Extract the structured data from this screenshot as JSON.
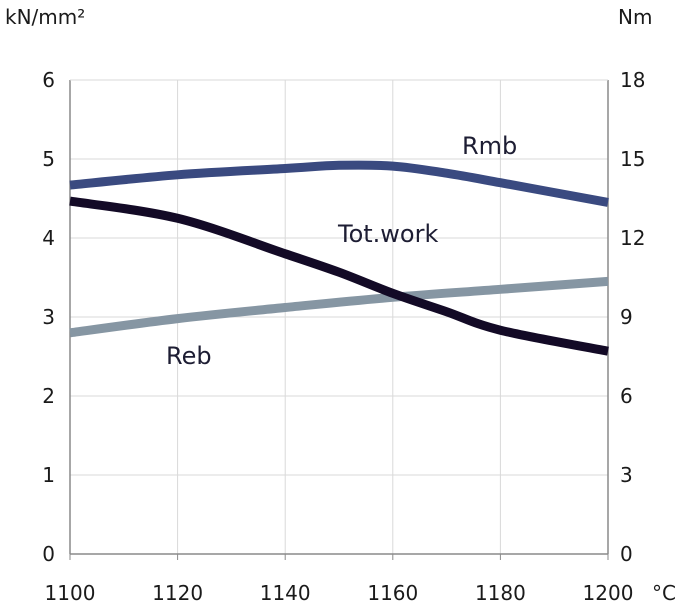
{
  "chart_data": {
    "type": "line",
    "x_unit": "°C",
    "y_left_unit": "kN/mm²",
    "y_right_unit": "Nm",
    "x_ticks": [
      "1100",
      "1120",
      "1140",
      "1160",
      "1180",
      "1200"
    ],
    "y_left_ticks": [
      "0",
      "1",
      "2",
      "3",
      "4",
      "5",
      "6"
    ],
    "y_right_ticks": [
      "0",
      "3",
      "6",
      "9",
      "12",
      "15",
      "18"
    ],
    "xlim": [
      1100,
      1200
    ],
    "ylim_left": [
      0,
      6
    ],
    "ylim_right": [
      0,
      18
    ],
    "grid": true,
    "series": [
      {
        "name": "Rmb",
        "axis": "left",
        "color": "#3a4a80",
        "points": [
          [
            1100,
            4.67
          ],
          [
            1120,
            4.8
          ],
          [
            1140,
            4.88
          ],
          [
            1150,
            4.92
          ],
          [
            1160,
            4.91
          ],
          [
            1170,
            4.82
          ],
          [
            1180,
            4.7
          ],
          [
            1200,
            4.45
          ]
        ]
      },
      {
        "name": "Tot.work",
        "axis": "right",
        "color": "#130a26",
        "points": [
          [
            1100,
            13.4
          ],
          [
            1120,
            12.75
          ],
          [
            1140,
            11.4
          ],
          [
            1150,
            10.7
          ],
          [
            1160,
            9.9
          ],
          [
            1170,
            9.2
          ],
          [
            1180,
            8.5
          ],
          [
            1200,
            7.7
          ]
        ]
      },
      {
        "name": "Reb",
        "axis": "left",
        "color": "#8696a3",
        "points": [
          [
            1100,
            2.8
          ],
          [
            1120,
            2.98
          ],
          [
            1140,
            3.12
          ],
          [
            1160,
            3.25
          ],
          [
            1180,
            3.35
          ],
          [
            1200,
            3.45
          ]
        ]
      }
    ]
  }
}
